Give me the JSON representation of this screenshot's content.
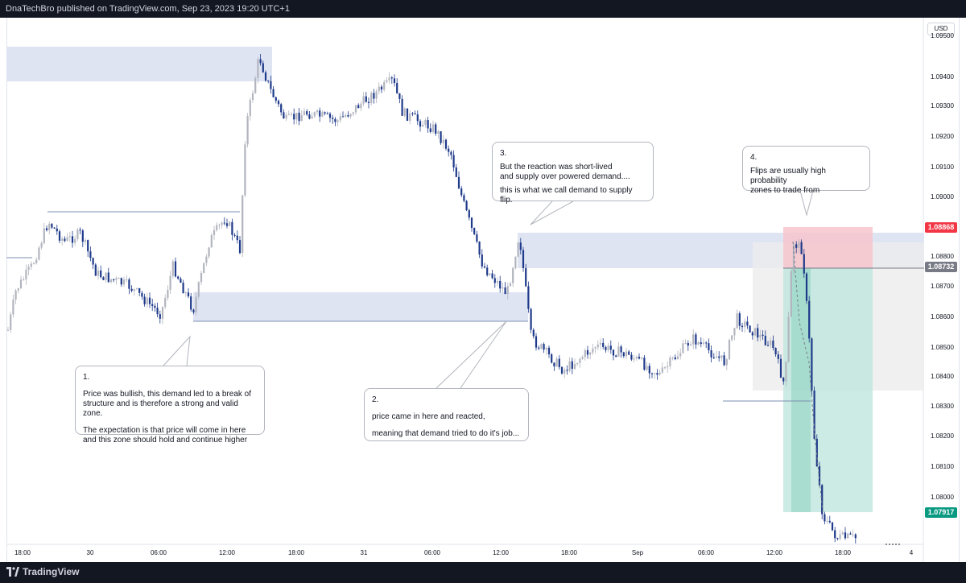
{
  "header": {
    "attribution": "DnaTechBro published on TradingView.com, Sep 23, 2023 19:20 UTC+1"
  },
  "footer": {
    "brand": "TradingView"
  },
  "price_axis": {
    "currency": "USD",
    "ticks": [
      "1.09500",
      "1.09400",
      "1.09300",
      "1.09200",
      "1.09100",
      "1.09000",
      "1.08900",
      "1.08800",
      "1.08700",
      "1.08600",
      "1.08500",
      "1.08400",
      "1.08300",
      "1.08200",
      "1.08100",
      "1.08000"
    ],
    "badges": [
      {
        "label": "1.08868",
        "color": "#f23645"
      },
      {
        "label": "1.08732",
        "color": "#787b86"
      },
      {
        "label": "1.07917",
        "color": "#089981"
      }
    ]
  },
  "time_axis": {
    "ticks": [
      "18:00",
      "30",
      "06:00",
      "12:00",
      "18:00",
      "31",
      "06:00",
      "12:00",
      "18:00",
      "Sep",
      "06:00",
      "12:00",
      "18:00",
      "4"
    ]
  },
  "annotations": [
    {
      "lines": [
        "1.",
        "",
        "Price was bullish, this demand led to a break of",
        "structure and is therefore a strong and valid zone.",
        "",
        "The expectation is that price will come in here",
        "and this zone should hold and continue higher"
      ]
    },
    {
      "lines": [
        "2.",
        "",
        "price came in here and reacted,",
        "",
        "meaning that demand tried to do it's job..."
      ]
    },
    {
      "lines": [
        "3.",
        "",
        "But the reaction was short-lived",
        "and supply over powered demand....",
        "",
        "this is what we call demand to supply flip."
      ]
    },
    {
      "lines": [
        "4.",
        "",
        "Flips are usually high probability",
        "zones to trade from"
      ]
    }
  ],
  "colors": {
    "candle_up": "#b2b5be",
    "candle_down": "#1e3a8a",
    "zone": "#dfe4f3",
    "stop_zone": "#f7c6cc",
    "target_zone": "#bfe6dd",
    "gray_zone": "#ececec"
  }
}
